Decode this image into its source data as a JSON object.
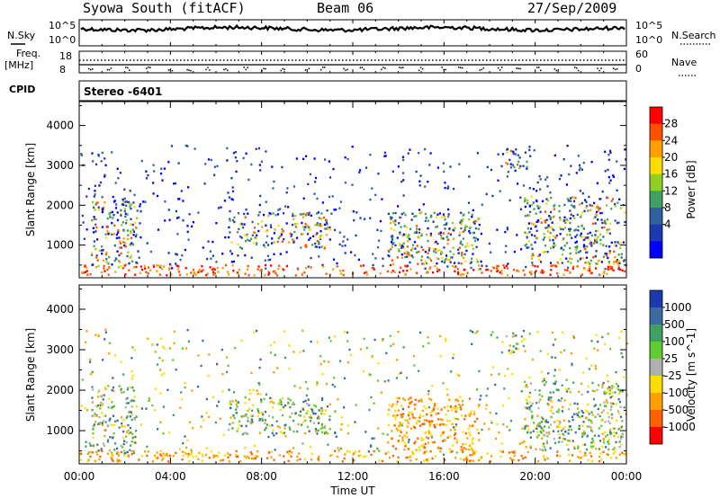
{
  "header": {
    "station": "Syowa South (fitACF)",
    "beam": "Beam 06",
    "date": "27/Sep/2009"
  },
  "top_panels": {
    "nsky_label": "N.Sky",
    "nsky_ticks": [
      "10^5",
      "10^0"
    ],
    "nsearch_label": "N.Search",
    "nsearch_ticks": [
      "10^5",
      "10^0"
    ],
    "freq_label": "Freq.",
    "freq_unit": "[MHz]",
    "freq_ticks": [
      "18",
      "8"
    ],
    "nave_label": "Nave",
    "nave_ticks": [
      "60",
      "0"
    ],
    "cpid_label": "CPID",
    "cpid_value": "Stereo -6401"
  },
  "chart_data": [
    {
      "type": "heatmap",
      "quantity": "Power",
      "ylabel": "Slant Range [km]",
      "ylim": [
        180,
        4600
      ],
      "yticks": [
        1000,
        2000,
        3000,
        4000
      ],
      "colorbar": {
        "label": "Power [dB]",
        "ticks": [
          "28",
          "24",
          "20",
          "16",
          "12",
          "8",
          "4"
        ],
        "colors": [
          "#ff0000",
          "#ff5000",
          "#ffa000",
          "#ffdd00",
          "#90d020",
          "#40a060",
          "#3060a0",
          "#1a3ab0",
          "#0000ff"
        ]
      },
      "scatter_regions": [
        {
          "t": [
            0.5,
            2.5
          ],
          "r": [
            400,
            2100
          ],
          "density": 0.5
        },
        {
          "t": [
            6.5,
            11.0
          ],
          "r": [
            900,
            1800
          ],
          "density": 0.45
        },
        {
          "t": [
            13.5,
            17.5
          ],
          "r": [
            500,
            1800
          ],
          "density": 0.55
        },
        {
          "t": [
            18.5,
            19.6
          ],
          "r": [
            2900,
            3400
          ],
          "density": 0.5
        },
        {
          "t": [
            19.5,
            23.9
          ],
          "r": [
            500,
            2200
          ],
          "density": 0.5
        }
      ]
    },
    {
      "type": "heatmap",
      "quantity": "Velocity",
      "ylabel": "Slant Range [km]",
      "ylim": [
        180,
        4600
      ],
      "yticks": [
        1000,
        2000,
        3000,
        4000
      ],
      "xlabel": "Time UT",
      "xticks": [
        "00:00",
        "04:00",
        "08:00",
        "12:00",
        "16:00",
        "20:00",
        "00:00"
      ],
      "colorbar": {
        "label": "Velocity [m s^-1]",
        "ticks": [
          "1000",
          "500",
          "100",
          "25",
          "-25",
          "-100",
          "-500",
          "-1000"
        ],
        "colors": [
          "#1a3ab0",
          "#3a6aa0",
          "#40a060",
          "#60cc30",
          "#b0b0b0",
          "#ffdd00",
          "#ffa000",
          "#ff6000",
          "#ff0000"
        ]
      },
      "scatter_regions": [
        {
          "t": [
            0.5,
            2.5
          ],
          "r": [
            400,
            2100
          ],
          "density": 0.5
        },
        {
          "t": [
            6.5,
            11.0
          ],
          "r": [
            900,
            1800
          ],
          "density": 0.45
        },
        {
          "t": [
            13.5,
            17.5
          ],
          "r": [
            500,
            1800
          ],
          "density": 0.55
        },
        {
          "t": [
            18.5,
            19.6
          ],
          "r": [
            2900,
            3400
          ],
          "density": 0.5
        },
        {
          "t": [
            19.5,
            23.9
          ],
          "r": [
            500,
            2200
          ],
          "density": 0.5
        }
      ]
    }
  ]
}
